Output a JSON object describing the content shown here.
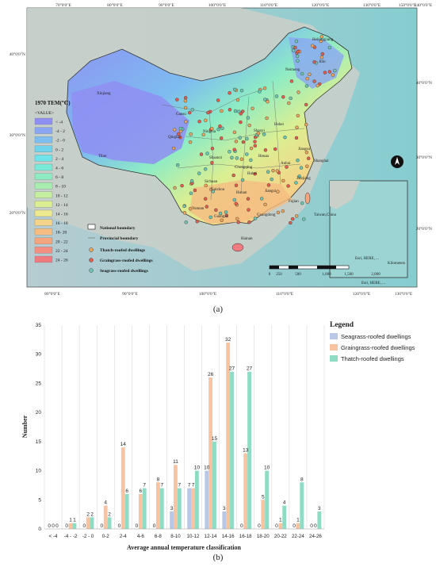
{
  "map": {
    "lon_labels": [
      "70°0'0\"E",
      "80°0'0\"E",
      "90°0'0\"E",
      "100°0'0\"E",
      "110°0'0\"E",
      "120°0'0\"E",
      "130°0'0\"E",
      "140°0'0\"E",
      "150°0'0\"E"
    ],
    "lon_labels_bottom": [
      "80°0'0\"E",
      "90°0'0\"E",
      "100°0'0\"E",
      "110°0'0\"E",
      "120°0'0\"E",
      "130°0'0\"E"
    ],
    "lat_labels_left": [
      "40°0'0\"N",
      "30°0'0\"N",
      "20°0'0\"N"
    ],
    "lat_labels_right": [
      "40°0'0\"N",
      "30°0'0\"N",
      "20°0'0\"N"
    ],
    "legend_title": "1970 TEM(℃)",
    "legend_subtitle": "<VALUE>",
    "temp_classes": [
      {
        "label": "< -4",
        "color": "#8f8ef2"
      },
      {
        "label": "-4 - 2",
        "color": "#8aa6f2"
      },
      {
        "label": "-2 - 0",
        "color": "#7dbdf0"
      },
      {
        "label": "0 - 2",
        "color": "#6fd3ee"
      },
      {
        "label": "2 - 4",
        "color": "#6ee3ea"
      },
      {
        "label": "4 - 6",
        "color": "#7ae9d8"
      },
      {
        "label": "6 - 8",
        "color": "#8eecc4"
      },
      {
        "label": "8 - 10",
        "color": "#a8eeb0"
      },
      {
        "label": "10 - 12",
        "color": "#c4ef9e"
      },
      {
        "label": "12 - 14",
        "color": "#dbef92"
      },
      {
        "label": "14 - 16",
        "color": "#eee88e"
      },
      {
        "label": "16 - 18",
        "color": "#f4d488"
      },
      {
        "label": "18- 20",
        "color": "#f5bd82"
      },
      {
        "label": "20 - 22",
        "color": "#f5a57e"
      },
      {
        "label": "22 - 24",
        "color": "#f38e80"
      },
      {
        "label": "24 - 26",
        "color": "#ef7a80"
      }
    ],
    "boundary_labels": [
      "National boundary",
      "Provincial boundary"
    ],
    "dwelling_labels": [
      "Thatch-roofed dwellings",
      "Graingrass-roofed dwellings",
      "Seagrass-roofed dwellings"
    ],
    "provinces": [
      "Heilongjiang",
      "Jilin",
      "Neimeng",
      "Xinjiang",
      "Gansu",
      "Qinghai",
      "Tibet",
      "Ningxia",
      "Shaanxi",
      "Shanxi",
      "Hebei",
      "Henan",
      "Sichuan",
      "Chongqing",
      "Hubei",
      "Anhui",
      "Jiangsu",
      "Shanghai",
      "Zhejiang",
      "Hunan",
      "Jiangxi",
      "Fujian",
      "Guizhou",
      "Yunnan",
      "Guangxi",
      "Guangdong",
      "Taiwan,China",
      "Hainan"
    ],
    "scale_values": [
      "0",
      "250",
      "500",
      "1,000",
      "1,500",
      "2,000"
    ],
    "scale_unit": "Kilometers",
    "credits": [
      "Esri, HERE, ...",
      "Esri, HERE, ..."
    ]
  },
  "caption_a": "(a)",
  "caption_b": "(b)",
  "chart_data": {
    "type": "bar",
    "categories": [
      "< -4",
      "-4 - -2",
      "-2 - 0",
      "0-2",
      "2-4",
      "4-6",
      "6-8",
      "8-10",
      "10-12",
      "12-14",
      "14-16",
      "16-18",
      "18-20",
      "20-22",
      "22-24",
      "24-26"
    ],
    "series": [
      {
        "name": "Seagrass-roofed dwellings",
        "color": "#b9c8e6",
        "values": [
          0,
          0,
          0,
          0,
          0,
          0,
          0,
          3,
          7,
          10,
          3,
          0,
          0,
          0,
          0,
          0
        ]
      },
      {
        "name": "Graingrass-roofed dwellings",
        "color": "#f8c3a0",
        "values": [
          0,
          1,
          2,
          4,
          14,
          6,
          8,
          11,
          7,
          26,
          32,
          13,
          5,
          1,
          1,
          0
        ]
      },
      {
        "name": "Thatch-roofed dwellings",
        "color": "#8edcc3",
        "values": [
          0,
          1,
          2,
          2,
          6,
          7,
          7,
          7,
          10,
          15,
          27,
          27,
          10,
          4,
          8,
          3
        ]
      }
    ],
    "xlabel": "Average annual temperature classification",
    "ylabel": "Number",
    "ylim": [
      0,
      35
    ],
    "yticks": [
      0,
      5,
      10,
      15,
      20,
      25,
      30,
      35
    ],
    "legend_title": "Legend",
    "legend_position": "right",
    "grid": "vertical"
  }
}
